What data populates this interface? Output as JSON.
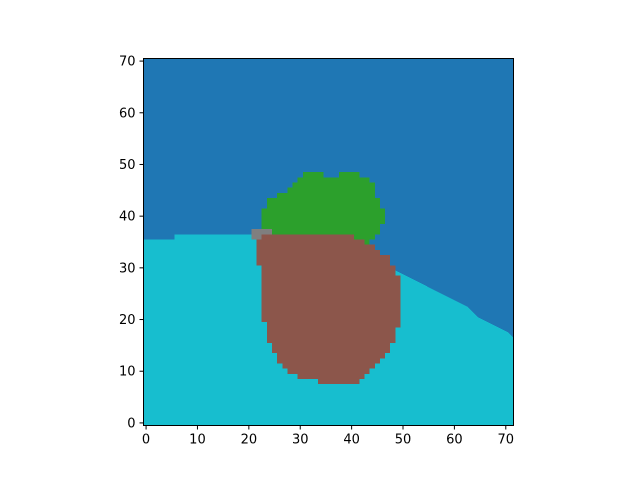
{
  "chart_data": {
    "type": "heatmap",
    "title": "",
    "xlabel": "",
    "ylabel": "",
    "grid": false,
    "legend": "none",
    "origin": "lower",
    "xlim": [
      -0.5,
      71.5
    ],
    "ylim": [
      -0.5,
      70.5
    ],
    "xticks": [
      0,
      10,
      20,
      30,
      40,
      50,
      60,
      70
    ],
    "yticks": [
      0,
      10,
      20,
      30,
      40,
      50,
      60,
      70
    ],
    "xtick_labels": [
      "0",
      "10",
      "20",
      "30",
      "40",
      "50",
      "60",
      "70"
    ],
    "ytick_labels": [
      "0",
      "10",
      "20",
      "30",
      "40",
      "50",
      "60",
      "70"
    ],
    "colors": {
      "sky": "#1f77b4",
      "ground": "#17becf",
      "tree_canopy": "#2ca02c",
      "trunk_rock": "#8c564b",
      "small_object": "#7f7f7f"
    },
    "regions": [
      {
        "class": "sky",
        "polygon": [
          [
            -0.5,
            70.5
          ],
          [
            71.5,
            70.5
          ],
          [
            71.5,
            -0.5
          ],
          [
            -0.5,
            -0.5
          ]
        ]
      },
      {
        "class": "ground",
        "polygon": [
          [
            -0.5,
            -0.5
          ],
          [
            71.5,
            -0.5
          ],
          [
            71.5,
            16.5
          ],
          [
            70.5,
            17.5
          ],
          [
            68.5,
            18.5
          ],
          [
            66.5,
            19.5
          ],
          [
            64.5,
            20.5
          ],
          [
            62.5,
            22.5
          ],
          [
            60.5,
            23.5
          ],
          [
            58.5,
            24.5
          ],
          [
            56.5,
            25.5
          ],
          [
            54.5,
            26.5
          ],
          [
            52.5,
            27.5
          ],
          [
            50.5,
            28.5
          ],
          [
            48.5,
            29.5
          ],
          [
            45.5,
            30.5
          ],
          [
            42.5,
            31.5
          ],
          [
            38.5,
            32.5
          ],
          [
            32.5,
            33.5
          ],
          [
            28.5,
            34.5
          ],
          [
            25.5,
            35.5
          ],
          [
            21.5,
            36.5
          ],
          [
            5.5,
            36.5
          ],
          [
            5.5,
            35.5
          ],
          [
            -0.5,
            35.5
          ]
        ]
      },
      {
        "class": "tree_canopy",
        "polygon": [
          [
            22.5,
            36.5
          ],
          [
            22.5,
            41.5
          ],
          [
            23.5,
            41.5
          ],
          [
            23.5,
            43.5
          ],
          [
            25.5,
            43.5
          ],
          [
            25.5,
            44.5
          ],
          [
            27.5,
            44.5
          ],
          [
            27.5,
            45.5
          ],
          [
            28.5,
            45.5
          ],
          [
            28.5,
            46.5
          ],
          [
            29.5,
            46.5
          ],
          [
            29.5,
            47.5
          ],
          [
            30.5,
            47.5
          ],
          [
            30.5,
            48.5
          ],
          [
            34.5,
            48.5
          ],
          [
            34.5,
            47.5
          ],
          [
            37.5,
            47.5
          ],
          [
            37.5,
            48.5
          ],
          [
            41.5,
            48.5
          ],
          [
            41.5,
            47.5
          ],
          [
            43.5,
            47.5
          ],
          [
            43.5,
            46.5
          ],
          [
            44.5,
            46.5
          ],
          [
            44.5,
            43.5
          ],
          [
            45.5,
            43.5
          ],
          [
            45.5,
            41.5
          ],
          [
            46.5,
            41.5
          ],
          [
            46.5,
            38.5
          ],
          [
            45.5,
            38.5
          ],
          [
            45.5,
            36.5
          ],
          [
            44.5,
            36.5
          ],
          [
            44.5,
            35.5
          ],
          [
            43.5,
            35.5
          ],
          [
            43.5,
            34.5
          ],
          [
            41.5,
            34.5
          ],
          [
            41.5,
            35.5
          ],
          [
            22.5,
            35.5
          ]
        ]
      },
      {
        "class": "trunk_rock",
        "polygon": [
          [
            22.5,
            36.5
          ],
          [
            40.5,
            36.5
          ],
          [
            40.5,
            35.5
          ],
          [
            42.5,
            35.5
          ],
          [
            42.5,
            34.5
          ],
          [
            44.5,
            34.5
          ],
          [
            44.5,
            33.5
          ],
          [
            45.5,
            33.5
          ],
          [
            45.5,
            32.5
          ],
          [
            47.5,
            32.5
          ],
          [
            47.5,
            30.5
          ],
          [
            48.5,
            30.5
          ],
          [
            48.5,
            28.5
          ],
          [
            49.5,
            28.5
          ],
          [
            49.5,
            18.5
          ],
          [
            48.5,
            18.5
          ],
          [
            48.5,
            15.5
          ],
          [
            47.5,
            15.5
          ],
          [
            47.5,
            13.5
          ],
          [
            46.5,
            13.5
          ],
          [
            46.5,
            12.5
          ],
          [
            45.5,
            12.5
          ],
          [
            45.5,
            11.5
          ],
          [
            44.5,
            11.5
          ],
          [
            44.5,
            10.5
          ],
          [
            43.5,
            10.5
          ],
          [
            43.5,
            9.5
          ],
          [
            42.5,
            9.5
          ],
          [
            42.5,
            8.5
          ],
          [
            41.5,
            8.5
          ],
          [
            41.5,
            7.5
          ],
          [
            33.5,
            7.5
          ],
          [
            33.5,
            8.5
          ],
          [
            29.5,
            8.5
          ],
          [
            29.5,
            9.5
          ],
          [
            27.5,
            9.5
          ],
          [
            27.5,
            10.5
          ],
          [
            26.5,
            10.5
          ],
          [
            26.5,
            11.5
          ],
          [
            25.5,
            11.5
          ],
          [
            25.5,
            13.5
          ],
          [
            24.5,
            13.5
          ],
          [
            24.5,
            15.5
          ],
          [
            23.5,
            15.5
          ],
          [
            23.5,
            19.5
          ],
          [
            22.5,
            19.5
          ],
          [
            22.5,
            30.5
          ],
          [
            21.5,
            30.5
          ],
          [
            21.5,
            35.5
          ],
          [
            22.5,
            35.5
          ]
        ]
      },
      {
        "class": "small_object",
        "polygon": [
          [
            20.5,
            35.5
          ],
          [
            20.5,
            37.5
          ],
          [
            24.5,
            37.5
          ],
          [
            24.5,
            36.5
          ],
          [
            22.5,
            36.5
          ],
          [
            22.5,
            35.5
          ]
        ]
      }
    ]
  }
}
